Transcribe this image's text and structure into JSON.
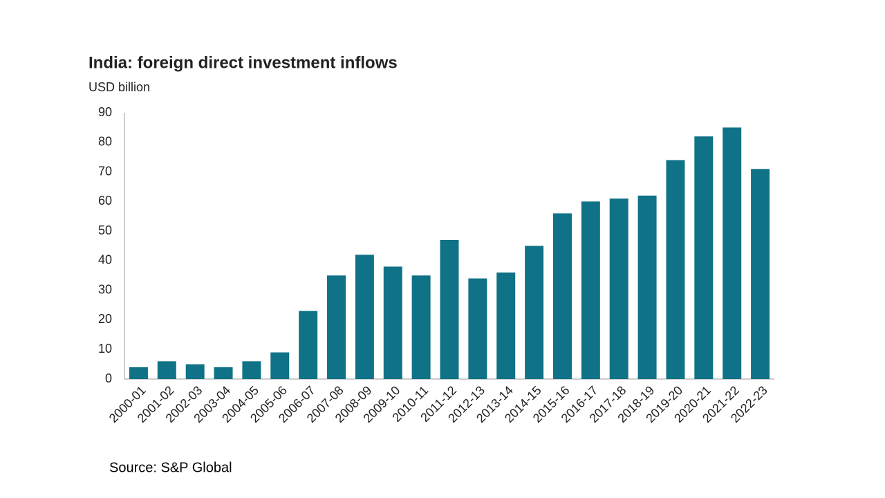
{
  "chart_data": {
    "type": "bar",
    "title": "India: foreign direct investment inflows",
    "subtitle": "USD billion",
    "source": "Source: S&P Global",
    "categories": [
      "2000-01",
      "2001-02",
      "2002-03",
      "2003-04",
      "2004-05",
      "2005-06",
      "2006-07",
      "2007-08",
      "2008-09",
      "2009-10",
      "2010-11",
      "2011-12",
      "2012-13",
      "2013-14",
      "2014-15",
      "2015-16",
      "2016-17",
      "2017-18",
      "2018-19",
      "2019-20",
      "2020-21",
      "2021-22",
      "2022-23"
    ],
    "values": [
      4,
      6,
      5,
      4,
      6,
      9,
      23,
      35,
      42,
      38,
      35,
      47,
      34,
      36,
      45,
      56,
      60,
      61,
      62,
      74,
      82,
      85,
      71
    ],
    "color": "#0f7286",
    "ylim": [
      0,
      90
    ],
    "yticks": [
      0,
      10,
      20,
      30,
      40,
      50,
      60,
      70,
      80,
      90
    ],
    "grid": false
  }
}
